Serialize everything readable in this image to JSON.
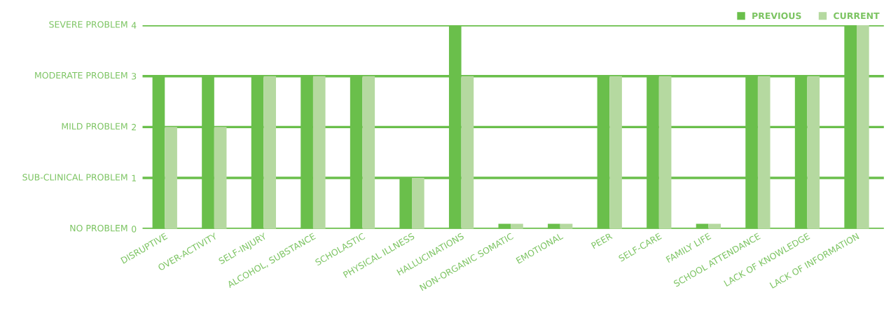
{
  "chart_data": {
    "type": "bar",
    "categories": [
      "DISRUPTIVE",
      "OVER-ACTIVITY",
      "SELF-INJURY",
      "ALCOHOL, SUBSTANCE",
      "SCHOLASTIC",
      "PHYSICAL ILLNESS",
      "HALLUCINATIONS",
      "NON-ORGANIC SOMATIC",
      "EMOTIONAL",
      "PEER",
      "SELF-CARE",
      "FAMILY LIFE",
      "SCHOOL ATTENDANCE",
      "LACK OF KNOWLEDGE",
      "LACK OF INFORMATION"
    ],
    "series": [
      {
        "name": "PREVIOUS",
        "color": "#6abf4b",
        "values": [
          3,
          3,
          3,
          3,
          3,
          1,
          4,
          0.1,
          0.1,
          3,
          3,
          0.1,
          3,
          3,
          4
        ]
      },
      {
        "name": "CURRENT",
        "color": "#b5d9a0",
        "values": [
          2,
          2,
          3,
          3,
          3,
          1,
          3,
          0.1,
          0.1,
          3,
          3,
          0.1,
          3,
          3,
          4
        ]
      }
    ],
    "ylim": [
      0,
      4
    ],
    "yticks": [
      0,
      1,
      2,
      3,
      4
    ],
    "annotations": [
      "NO PROBLEM",
      "SUB-CLINICAL PROBLEM",
      "MILD PROBLEM",
      "MODERATE PROBLEM",
      "SEVERE PROBLEM"
    ],
    "grid": "y",
    "legend": "top right"
  }
}
